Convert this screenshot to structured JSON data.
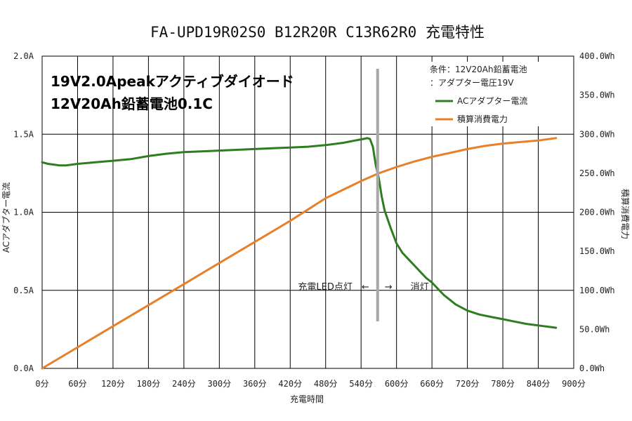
{
  "chart_data": {
    "type": "line",
    "title": "FA-UPD19R02S0 B12R20R C13R62R0 充電特性",
    "overlay_text": [
      "19V2.0Apeakアクティブダイオード",
      "12V20Ah鉛蓄電池0.1C"
    ],
    "conditions": [
      "条件：12V20Ah鉛蓄電池",
      "：アダプター電圧19V"
    ],
    "xlabel": "充電時間",
    "ylabel": "ACアダプター電流",
    "y2label": "積算消費電力",
    "xlim": [
      0,
      900
    ],
    "ylim": [
      0,
      2.0
    ],
    "y2lim": [
      0,
      400
    ],
    "x_ticks": [
      0,
      60,
      120,
      180,
      240,
      300,
      360,
      420,
      480,
      540,
      600,
      660,
      720,
      780,
      840,
      900
    ],
    "x_tick_labels": [
      "0分",
      "60分",
      "120分",
      "180分",
      "240分",
      "300分",
      "360分",
      "420分",
      "480分",
      "540分",
      "600分",
      "660分",
      "720分",
      "780分",
      "840分",
      "900分"
    ],
    "y_ticks": [
      0,
      0.5,
      1.0,
      1.5,
      2.0
    ],
    "y_tick_labels": [
      "0.0A",
      "0.5A",
      "1.0A",
      "1.5A",
      "2.0A"
    ],
    "y2_ticks": [
      0,
      50,
      100,
      150,
      200,
      250,
      300,
      350,
      400
    ],
    "y2_tick_labels": [
      "0.0Wh",
      "50.0Wh",
      "100.0Wh",
      "150.0Wh",
      "200.0Wh",
      "250.0Wh",
      "300.0Wh",
      "350.0Wh",
      "400.0Wh"
    ],
    "grid": true,
    "legend_position": "top-right",
    "series": [
      {
        "name": "ACアダプター電流",
        "color": "#2e7d20",
        "axis": "left",
        "x": [
          0,
          10,
          20,
          30,
          40,
          60,
          90,
          120,
          150,
          180,
          210,
          240,
          270,
          300,
          330,
          360,
          390,
          420,
          450,
          480,
          510,
          530,
          545,
          550,
          555,
          560,
          565,
          570,
          575,
          580,
          590,
          600,
          610,
          620,
          630,
          640,
          650,
          660,
          670,
          680,
          690,
          700,
          720,
          740,
          760,
          780,
          800,
          820,
          840,
          860,
          870
        ],
        "values": [
          1.32,
          1.31,
          1.305,
          1.3,
          1.3,
          1.31,
          1.32,
          1.33,
          1.34,
          1.36,
          1.375,
          1.385,
          1.39,
          1.395,
          1.4,
          1.405,
          1.41,
          1.415,
          1.42,
          1.43,
          1.445,
          1.46,
          1.47,
          1.475,
          1.47,
          1.42,
          1.3,
          1.22,
          1.1,
          1.01,
          0.9,
          0.8,
          0.74,
          0.7,
          0.66,
          0.62,
          0.58,
          0.55,
          0.51,
          0.47,
          0.44,
          0.41,
          0.37,
          0.345,
          0.33,
          0.315,
          0.3,
          0.285,
          0.275,
          0.265,
          0.26
        ]
      },
      {
        "name": "積算消費電力",
        "color": "#e8802a",
        "axis": "right",
        "x": [
          0,
          60,
          120,
          180,
          240,
          300,
          360,
          420,
          480,
          540,
          570,
          600,
          630,
          660,
          690,
          720,
          750,
          780,
          810,
          840,
          870
        ],
        "values": [
          0,
          27,
          54,
          81,
          108,
          135,
          162,
          189,
          218,
          240,
          250,
          258,
          265,
          271,
          276,
          281,
          285,
          288,
          290,
          292,
          295
        ]
      }
    ],
    "marker": {
      "x": 568,
      "label_left": "充電LED点灯　←",
      "label_right": "→　　消灯"
    }
  }
}
